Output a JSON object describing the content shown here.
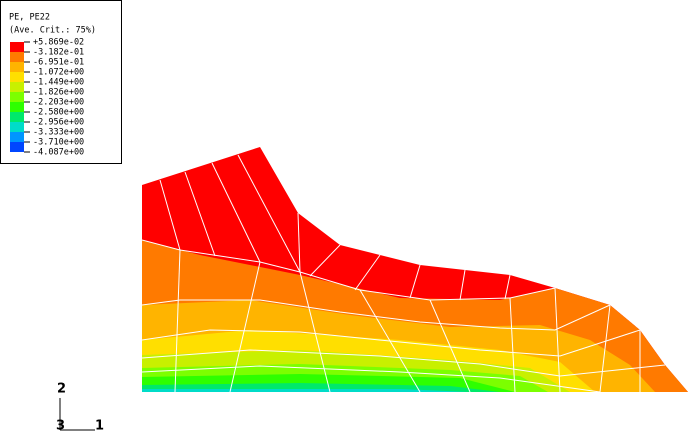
{
  "legend": {
    "title": "PE, PE22",
    "subtitle": "(Ave. Crit.: 75%)",
    "labels": [
      "+5.869e-02",
      "-3.182e-01",
      "-6.951e-01",
      "-1.072e+00",
      "-1.449e+00",
      "-1.826e+00",
      "-2.203e+00",
      "-2.580e+00",
      "-2.956e+00",
      "-3.333e+00",
      "-3.710e+00",
      "-4.087e+00"
    ],
    "colors": [
      "#ff0000",
      "#ff7a00",
      "#ffb400",
      "#ffdf00",
      "#c8f000",
      "#7cff00",
      "#2eff00",
      "#00e96a",
      "#00dcc8",
      "#0096ff",
      "#0046ff",
      "#0000ff"
    ]
  },
  "triad": {
    "y": "2",
    "z": "3",
    "x": "1"
  }
}
